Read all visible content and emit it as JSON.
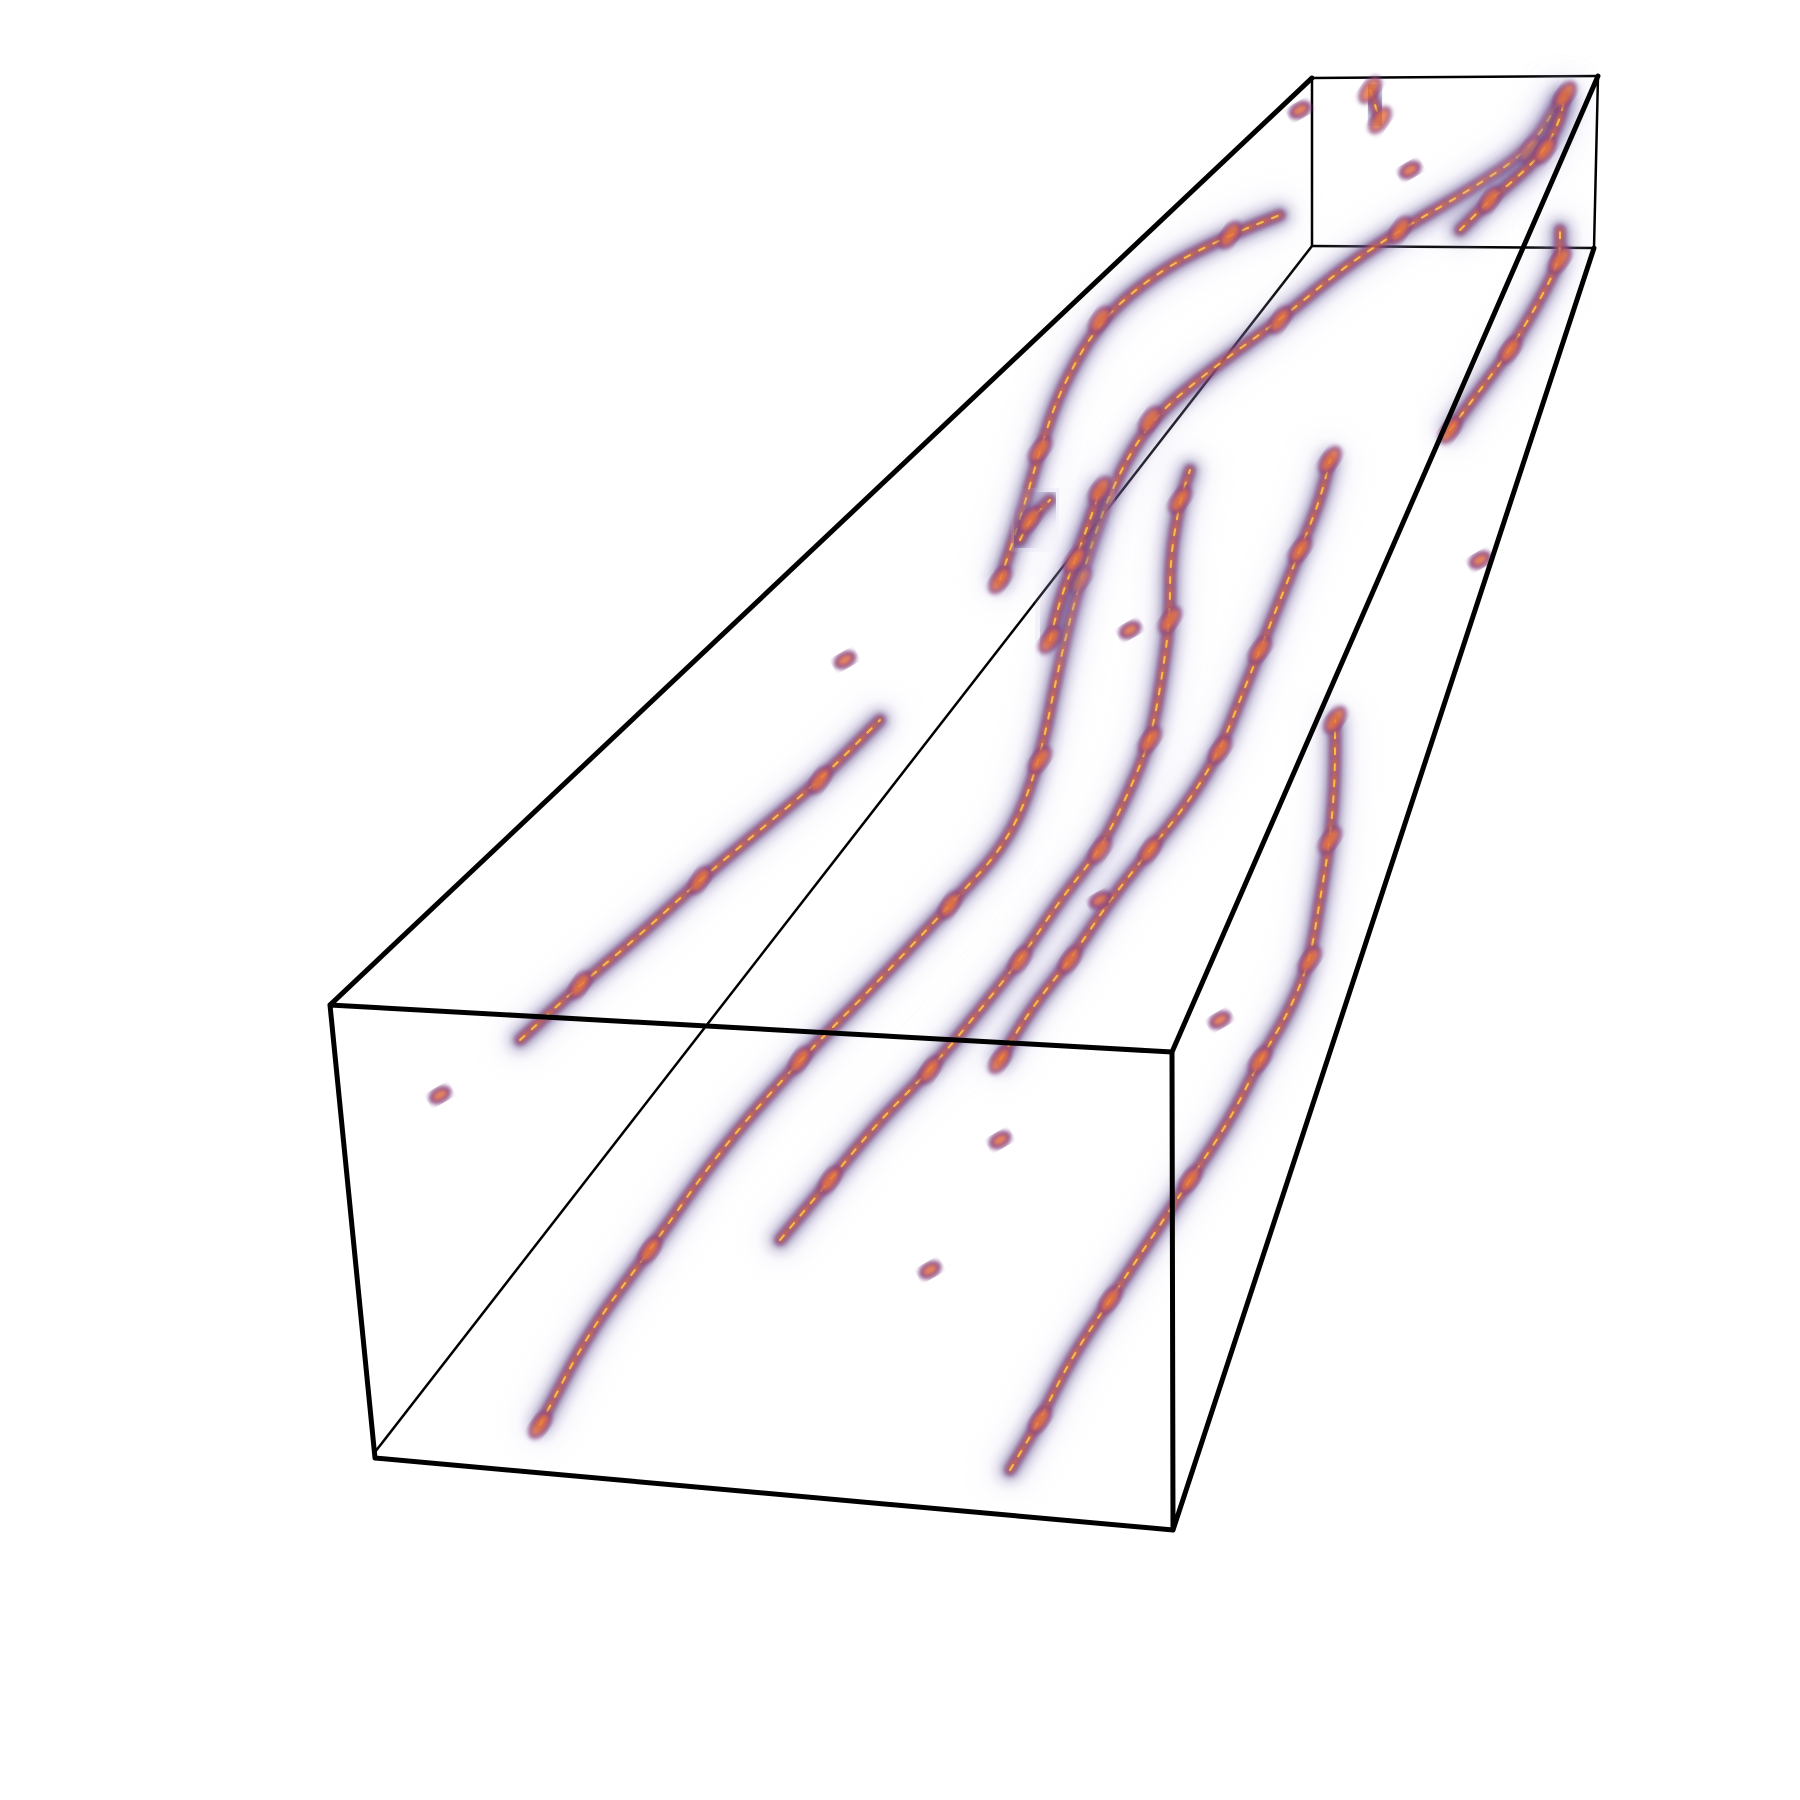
{
  "figure": {
    "kind": "3D volume rendering of particle tracks inside a bounding box",
    "background_color": "#ffffff",
    "box_edge_color": "#000000",
    "track_colormap": [
      "#3b2a6e",
      "#7a3a80",
      "#c2425a",
      "#e8743a",
      "#f7c34a"
    ],
    "haze_color": "#c9c4e6"
  }
}
